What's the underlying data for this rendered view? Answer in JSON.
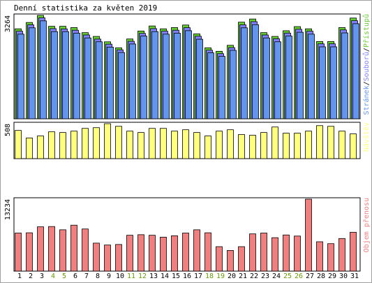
{
  "title": "Denní statistika za květen 2019",
  "colors": {
    "pages": "#6495ed",
    "files": "#8080ff",
    "hits": "#66cc33",
    "visits": "#ffff80",
    "traffic": "#f08080",
    "weekend_label": "#669900",
    "weekday_label": "#000000"
  },
  "chart_data": [
    {
      "type": "bar",
      "id": "panel-hits",
      "ylabel": "3264",
      "legend": [
        {
          "label": "Stránek",
          "color": "#6495ed"
        },
        {
          "label": "/",
          "color": "#000000"
        },
        {
          "label": "Souborů",
          "color": "#8080ff"
        },
        {
          "label": "/",
          "color": "#000000"
        },
        {
          "label": "Přístupů",
          "color": "#66cc33"
        }
      ],
      "ylim": [
        0,
        3264
      ],
      "categories": [
        "1",
        "2",
        "3",
        "4",
        "5",
        "6",
        "7",
        "8",
        "9",
        "10",
        "11",
        "12",
        "13",
        "14",
        "15",
        "16",
        "17",
        "18",
        "19",
        "20",
        "21",
        "22",
        "23",
        "24",
        "25",
        "26",
        "27",
        "28",
        "29",
        "30",
        "31"
      ],
      "weekend": [
        4,
        5,
        11,
        12,
        18,
        19,
        25,
        26
      ],
      "series": [
        {
          "name": "Přístupů",
          "values": [
            2840,
            3040,
            3264,
            2920,
            2920,
            2880,
            2720,
            2600,
            2430,
            2240,
            2520,
            2770,
            2930,
            2840,
            2880,
            2960,
            2680,
            2240,
            2130,
            2320,
            3050,
            3150,
            2720,
            2600,
            2780,
            2910,
            2840,
            2440,
            2440,
            2880,
            3180
          ]
        },
        {
          "name": "Souborů",
          "values": [
            2810,
            3010,
            3230,
            2890,
            2880,
            2840,
            2690,
            2560,
            2400,
            2220,
            2490,
            2740,
            2890,
            2810,
            2840,
            2920,
            2650,
            2210,
            2100,
            2290,
            3010,
            3110,
            2690,
            2570,
            2750,
            2870,
            2810,
            2410,
            2410,
            2850,
            3140
          ]
        },
        {
          "name": "Stránek",
          "values": [
            2760,
            2960,
            3180,
            2840,
            2840,
            2790,
            2640,
            2520,
            2350,
            2180,
            2450,
            2700,
            2840,
            2760,
            2790,
            2870,
            2600,
            2170,
            2060,
            2250,
            2960,
            3060,
            2640,
            2520,
            2700,
            2820,
            2760,
            2360,
            2360,
            2800,
            3090
          ]
        }
      ]
    },
    {
      "type": "bar",
      "id": "panel-visits",
      "ylabel": "508",
      "legend": [
        {
          "label": "Návštěv",
          "color": "#ffff80"
        }
      ],
      "ylim": [
        0,
        508
      ],
      "series": [
        {
          "name": "Návštěv",
          "values": [
            410,
            300,
            330,
            390,
            380,
            400,
            440,
            450,
            508,
            470,
            400,
            380,
            440,
            440,
            400,
            420,
            380,
            330,
            400,
            420,
            350,
            340,
            380,
            460,
            370,
            370,
            400,
            480,
            470,
            400,
            360
          ]
        }
      ]
    },
    {
      "type": "bar",
      "id": "panel-traffic",
      "ylabel": "13234",
      "legend": [
        {
          "label": "Objem přenosu",
          "color": "#f08080"
        }
      ],
      "ylim": [
        0,
        13234
      ],
      "series": [
        {
          "name": "Objem přenosu",
          "values": [
            7000,
            7050,
            8150,
            8200,
            7600,
            8450,
            7750,
            5150,
            4800,
            4900,
            6600,
            6700,
            6600,
            6250,
            6500,
            7000,
            7600,
            7050,
            4500,
            3800,
            4500,
            6850,
            7000,
            6150,
            6650,
            6450,
            13234,
            5400,
            5050,
            6000,
            7150
          ]
        }
      ]
    }
  ]
}
